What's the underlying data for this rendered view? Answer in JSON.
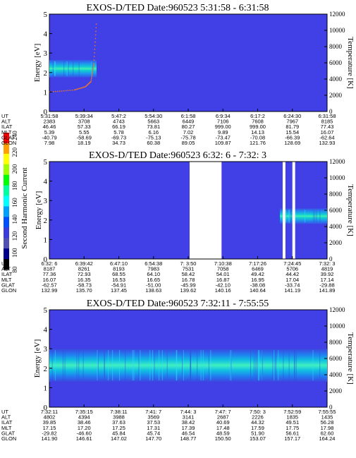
{
  "colorbar": {
    "label": "Second Harmonic Current",
    "ticks": [
      "240",
      "220",
      "200",
      "180",
      "160",
      "140",
      "120",
      "100",
      "80"
    ],
    "colors": [
      "#ff0000",
      "#ffa000",
      "#ffff00",
      "#a0ff00",
      "#00ff00",
      "#00ffa0",
      "#00ffff",
      "#00a0ff",
      "#0050ff",
      "#3c3cdc",
      "#5050b4",
      "#00008c",
      "#000000"
    ]
  },
  "panel_background": "#4040e6",
  "chart_data": [
    {
      "type": "heatmap",
      "title": "EXOS-D/TED   Date:960523  5:31:58 - 6:31:58",
      "ylabel": "Energy [eV]",
      "y2label": "Temperature [K]",
      "ylim": [
        0,
        5
      ],
      "y2lim": [
        0,
        12000
      ],
      "yticks": [
        "0",
        "1",
        "2",
        "3",
        "4",
        "5"
      ],
      "y2ticks": [
        "0",
        "2000",
        "4000",
        "6000",
        "8000",
        "10000",
        "12000"
      ],
      "ephemeris_rows": [
        "UT",
        "ALT",
        "ILAT",
        "MLT",
        "GLAT",
        "GLON"
      ],
      "ephemeris_cols": [
        [
          "5:31:58",
          "2383",
          "46.46",
          "5.39",
          "-40.79",
          "7.98"
        ],
        [
          "5:39:34",
          "3708",
          "57.33",
          "5.55",
          "-58.69",
          "18.19"
        ],
        [
          "5:47:2",
          "4743",
          "66.19",
          "5.78",
          "-69.73",
          "34.73"
        ],
        [
          "5:54:30",
          "5663",
          "73.81",
          "6.16",
          "-75.13",
          "60.38"
        ],
        [
          "6:1:58",
          "6449",
          "80.27",
          "7.02",
          "-75.78",
          "89.05"
        ],
        [
          "6:9:34",
          "7106",
          "999.00",
          "9.89",
          "-73.47",
          "109.87"
        ],
        [
          "6:17:2",
          "7608",
          "999.00",
          "14.13",
          "-70.08",
          "121.76"
        ],
        [
          "6:24:30",
          "7967",
          "81.79",
          "15.54",
          "-66.39",
          "128.69"
        ],
        [
          "6:31:58",
          "8185",
          "77.43",
          "16.07",
          "-62.64",
          "132.93"
        ]
      ],
      "intensity_band": {
        "x": [
          0.0,
          0.17
        ],
        "energy_center": 2.2,
        "energy_halfwidth": 0.45
      },
      "temperature_trace": {
        "x": [
          0.0,
          0.09,
          0.13,
          0.15,
          0.16,
          0.17
        ],
        "temperature": [
          2400,
          2650,
          3050,
          3700,
          5900,
          11200
        ]
      },
      "gaps": []
    },
    {
      "type": "heatmap",
      "title": "EXOS-D/TED   Date:960523  6:32: 6 - 7:32: 3",
      "ylabel": "Energy [eV]",
      "y2label": "Temperature [K]",
      "ylim": [
        0,
        5
      ],
      "y2lim": [
        0,
        12000
      ],
      "yticks": [
        "0",
        "1",
        "2",
        "3",
        "4",
        "5"
      ],
      "y2ticks": [
        "0",
        "2000",
        "4000",
        "6000",
        "8000",
        "10000",
        "12000"
      ],
      "ephemeris_rows": [
        "UT",
        "ALT",
        "ILAT",
        "MLT",
        "GLAT",
        "GLON"
      ],
      "ephemeris_cols": [
        [
          "6:32: 6",
          "8187",
          "77.36",
          "16.07",
          "-62.57",
          "132.99"
        ],
        [
          "6:39:42",
          "8261",
          "72.93",
          "16.35",
          "-58.73",
          "135.70"
        ],
        [
          "6:47:10",
          "8193",
          "68.55",
          "16.53",
          "-54.91",
          "137.45"
        ],
        [
          "6:54:38",
          "7983",
          "64.10",
          "16.65",
          "-51.00",
          "138.63"
        ],
        [
          "7: 3:50",
          "7531",
          "58.42",
          "16.78",
          "-45.99",
          "139.62"
        ],
        [
          "7:10:38",
          "7058",
          "54.01",
          "16.87",
          "-42.10",
          "140.16"
        ],
        [
          "7:17:26",
          "6469",
          "49.42",
          "16.95",
          "-38.08",
          "140.64"
        ],
        [
          "7:24:45",
          "5706",
          "44.42",
          "17.04",
          "-33.74",
          "141.19"
        ],
        [
          "7:32: 3",
          "4819",
          "39.92",
          "17.14",
          "-29.88",
          "141.89"
        ]
      ],
      "intensity_band": {
        "x": [
          0.83,
          1.0
        ],
        "energy_center": 2.2,
        "energy_halfwidth": 0.4
      },
      "temperature_trace": {
        "x": [],
        "temperature": []
      },
      "gaps": [
        [
          0.505,
          0.62
        ],
        [
          0.84,
          0.85
        ],
        [
          0.875,
          0.885
        ]
      ]
    },
    {
      "type": "heatmap",
      "title": "EXOS-D/TED   Date:960523  7:32:11 - 7:55:55",
      "ylabel": "Energy [eV]",
      "y2label": "Temperature [K]",
      "ylim": [
        0,
        5
      ],
      "y2lim": [
        0,
        12000
      ],
      "yticks": [
        "0",
        "1",
        "2",
        "3",
        "4",
        "5"
      ],
      "y2ticks": [
        "0",
        "2000",
        "4000",
        "6000",
        "8000",
        "10000",
        "12000"
      ],
      "ephemeris_rows": [
        "UT",
        "ALT",
        "ILAT",
        "MLT",
        "GLAT",
        "GLON"
      ],
      "ephemeris_cols": [
        [
          "7:32:11",
          "4802",
          "39.85",
          "17.15",
          "-29.82",
          "141.90"
        ],
        [
          "7:35:15",
          "4394",
          "38.46",
          "17.20",
          "-46.60",
          "146.61"
        ],
        [
          "7:38:11",
          "3988",
          "37.63",
          "17.25",
          "45.84",
          "147.02"
        ],
        [
          "7:41: 7",
          "3569",
          "37.53",
          "17.31",
          "45.74",
          "147.70"
        ],
        [
          "7:44: 3",
          "3141",
          "38.42",
          "17.39",
          "46.54",
          "148.77"
        ],
        [
          "7:47: 7",
          "2687",
          "40.69",
          "17.48",
          "48.59",
          "150.50"
        ],
        [
          "7:50: 3",
          "2226",
          "44.32",
          "17.59",
          "51.90",
          "153.07"
        ],
        [
          "7:52:59",
          "1835",
          "49.51",
          "17.75",
          "56.61",
          "157.17"
        ],
        [
          "7:55:55",
          "1435",
          "56.28",
          "17.98",
          "62.60",
          "164.24"
        ]
      ],
      "intensity_band": {
        "x": [
          0.0,
          1.0
        ],
        "energy_center": 2.15,
        "energy_halfwidth": 0.85
      },
      "temperature_trace": {
        "x": [],
        "temperature": []
      },
      "gaps": []
    }
  ]
}
